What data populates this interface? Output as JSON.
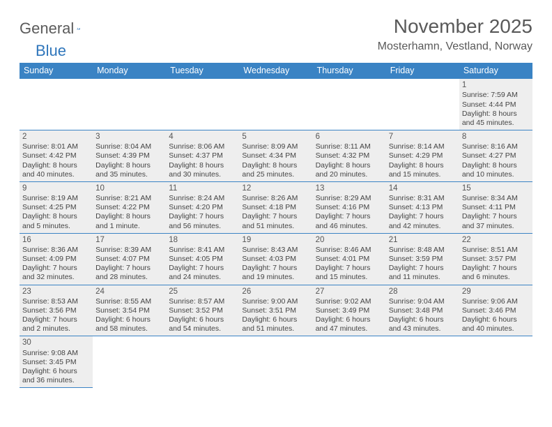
{
  "brand": {
    "name_a": "General",
    "name_b": "Blue",
    "accent": "#2f76bb"
  },
  "title": "November 2025",
  "location": "Mosterhamn, Vestland, Norway",
  "colors": {
    "header_bg": "#3a83c4",
    "row_bg": "#eeeeee",
    "line": "#3a83c4",
    "text": "#444444"
  },
  "day_headers": [
    "Sunday",
    "Monday",
    "Tuesday",
    "Wednesday",
    "Thursday",
    "Friday",
    "Saturday"
  ],
  "weeks": [
    [
      null,
      null,
      null,
      null,
      null,
      null,
      {
        "n": "1",
        "sunrise": "7:59 AM",
        "sunset": "4:44 PM",
        "daylight": "8 hours and 45 minutes."
      }
    ],
    [
      {
        "n": "2",
        "sunrise": "8:01 AM",
        "sunset": "4:42 PM",
        "daylight": "8 hours and 40 minutes."
      },
      {
        "n": "3",
        "sunrise": "8:04 AM",
        "sunset": "4:39 PM",
        "daylight": "8 hours and 35 minutes."
      },
      {
        "n": "4",
        "sunrise": "8:06 AM",
        "sunset": "4:37 PM",
        "daylight": "8 hours and 30 minutes."
      },
      {
        "n": "5",
        "sunrise": "8:09 AM",
        "sunset": "4:34 PM",
        "daylight": "8 hours and 25 minutes."
      },
      {
        "n": "6",
        "sunrise": "8:11 AM",
        "sunset": "4:32 PM",
        "daylight": "8 hours and 20 minutes."
      },
      {
        "n": "7",
        "sunrise": "8:14 AM",
        "sunset": "4:29 PM",
        "daylight": "8 hours and 15 minutes."
      },
      {
        "n": "8",
        "sunrise": "8:16 AM",
        "sunset": "4:27 PM",
        "daylight": "8 hours and 10 minutes."
      }
    ],
    [
      {
        "n": "9",
        "sunrise": "8:19 AM",
        "sunset": "4:25 PM",
        "daylight": "8 hours and 5 minutes."
      },
      {
        "n": "10",
        "sunrise": "8:21 AM",
        "sunset": "4:22 PM",
        "daylight": "8 hours and 1 minute."
      },
      {
        "n": "11",
        "sunrise": "8:24 AM",
        "sunset": "4:20 PM",
        "daylight": "7 hours and 56 minutes."
      },
      {
        "n": "12",
        "sunrise": "8:26 AM",
        "sunset": "4:18 PM",
        "daylight": "7 hours and 51 minutes."
      },
      {
        "n": "13",
        "sunrise": "8:29 AM",
        "sunset": "4:16 PM",
        "daylight": "7 hours and 46 minutes."
      },
      {
        "n": "14",
        "sunrise": "8:31 AM",
        "sunset": "4:13 PM",
        "daylight": "7 hours and 42 minutes."
      },
      {
        "n": "15",
        "sunrise": "8:34 AM",
        "sunset": "4:11 PM",
        "daylight": "7 hours and 37 minutes."
      }
    ],
    [
      {
        "n": "16",
        "sunrise": "8:36 AM",
        "sunset": "4:09 PM",
        "daylight": "7 hours and 32 minutes."
      },
      {
        "n": "17",
        "sunrise": "8:39 AM",
        "sunset": "4:07 PM",
        "daylight": "7 hours and 28 minutes."
      },
      {
        "n": "18",
        "sunrise": "8:41 AM",
        "sunset": "4:05 PM",
        "daylight": "7 hours and 24 minutes."
      },
      {
        "n": "19",
        "sunrise": "8:43 AM",
        "sunset": "4:03 PM",
        "daylight": "7 hours and 19 minutes."
      },
      {
        "n": "20",
        "sunrise": "8:46 AM",
        "sunset": "4:01 PM",
        "daylight": "7 hours and 15 minutes."
      },
      {
        "n": "21",
        "sunrise": "8:48 AM",
        "sunset": "3:59 PM",
        "daylight": "7 hours and 11 minutes."
      },
      {
        "n": "22",
        "sunrise": "8:51 AM",
        "sunset": "3:57 PM",
        "daylight": "7 hours and 6 minutes."
      }
    ],
    [
      {
        "n": "23",
        "sunrise": "8:53 AM",
        "sunset": "3:56 PM",
        "daylight": "7 hours and 2 minutes."
      },
      {
        "n": "24",
        "sunrise": "8:55 AM",
        "sunset": "3:54 PM",
        "daylight": "6 hours and 58 minutes."
      },
      {
        "n": "25",
        "sunrise": "8:57 AM",
        "sunset": "3:52 PM",
        "daylight": "6 hours and 54 minutes."
      },
      {
        "n": "26",
        "sunrise": "9:00 AM",
        "sunset": "3:51 PM",
        "daylight": "6 hours and 51 minutes."
      },
      {
        "n": "27",
        "sunrise": "9:02 AM",
        "sunset": "3:49 PM",
        "daylight": "6 hours and 47 minutes."
      },
      {
        "n": "28",
        "sunrise": "9:04 AM",
        "sunset": "3:48 PM",
        "daylight": "6 hours and 43 minutes."
      },
      {
        "n": "29",
        "sunrise": "9:06 AM",
        "sunset": "3:46 PM",
        "daylight": "6 hours and 40 minutes."
      }
    ],
    [
      {
        "n": "30",
        "sunrise": "9:08 AM",
        "sunset": "3:45 PM",
        "daylight": "6 hours and 36 minutes."
      },
      null,
      null,
      null,
      null,
      null,
      null
    ]
  ],
  "labels": {
    "sunrise": "Sunrise:",
    "sunset": "Sunset:",
    "daylight": "Daylight:"
  }
}
